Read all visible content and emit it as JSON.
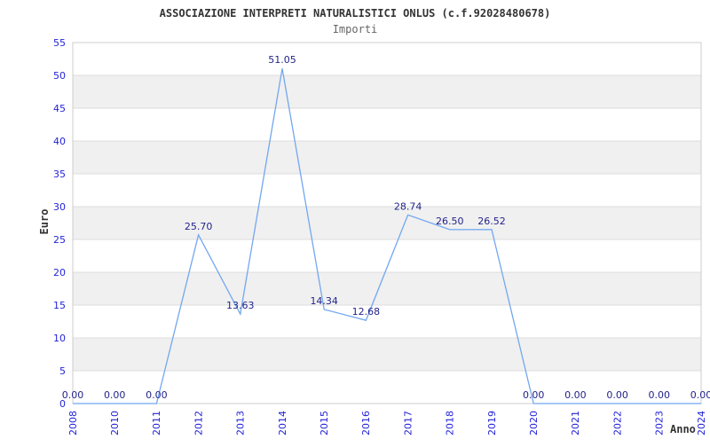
{
  "header": {
    "title": "ASSOCIAZIONE INTERPRETI NATURALISTICI ONLUS (c.f.92028480678)",
    "subtitle": "Importi"
  },
  "chart_data": {
    "type": "line",
    "title": "ASSOCIAZIONE INTERPRETI NATURALISTICI ONLUS (c.f.92028480678)",
    "subtitle": "Importi",
    "xlabel": "Anno",
    "ylabel": "Euro",
    "categories": [
      "2008",
      "2010",
      "2011",
      "2012",
      "2013",
      "2014",
      "2015",
      "2016",
      "2017",
      "2018",
      "2019",
      "2020",
      "2021",
      "2022",
      "2023",
      "2024"
    ],
    "values": [
      0.0,
      0.0,
      0.0,
      25.7,
      13.63,
      51.05,
      14.34,
      12.68,
      28.74,
      26.5,
      26.52,
      0.0,
      0.0,
      0.0,
      0.0,
      0.0
    ],
    "point_labels": [
      "0.00",
      "0.00",
      "0.00",
      "25.70",
      "13.63",
      "51.05",
      "14.34",
      "12.68",
      "28.74",
      "26.50",
      "26.52",
      "0.00",
      "0.00",
      "0.00",
      "0.00",
      "0.00"
    ],
    "ylim": [
      0,
      55
    ],
    "ytick_step": 5,
    "grid": true,
    "legend": "none",
    "colors": {
      "line": "#72a7f0",
      "tick_label": "#2323d7",
      "point_label": "#23238b",
      "band": "#f0f0f0",
      "gridline": "#dddddd",
      "plot_border": "#cccccc",
      "title": "#333333",
      "subtitle": "#666666"
    }
  }
}
